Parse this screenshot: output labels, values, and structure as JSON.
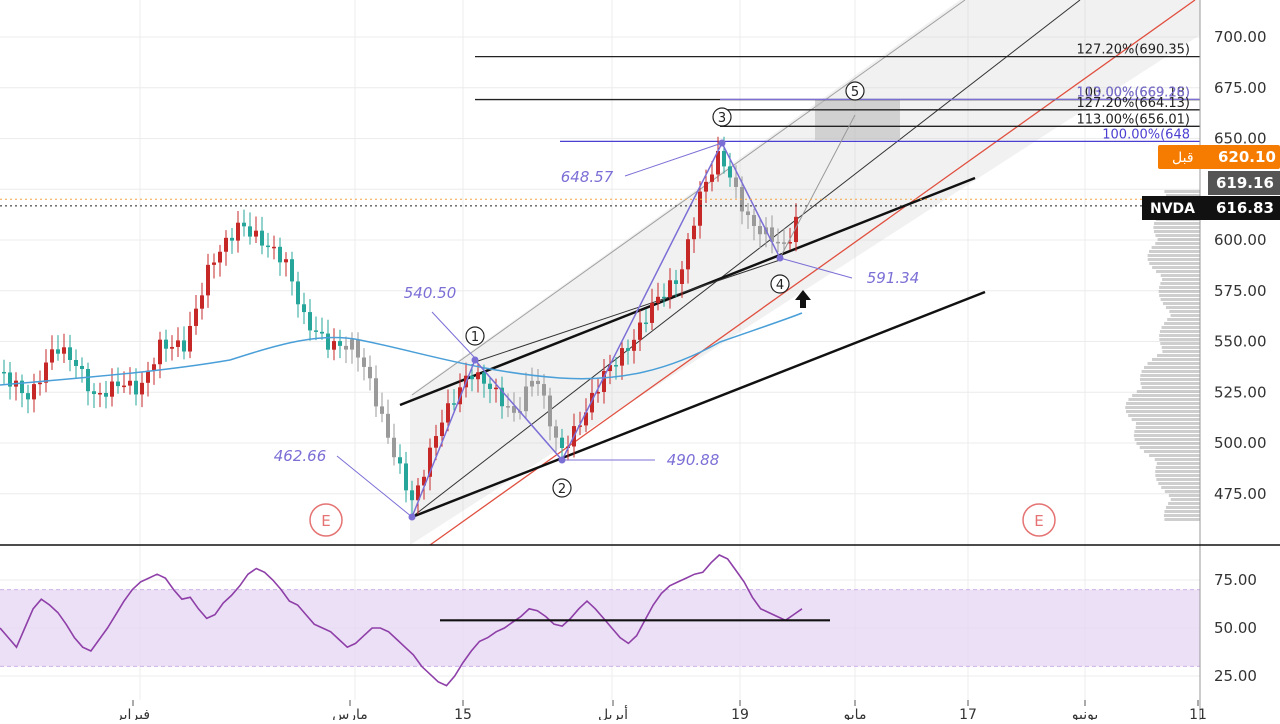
{
  "chart_data": {
    "type": "candlestick",
    "symbol": "NVDA",
    "price_axis": {
      "range": [
        450,
        720
      ],
      "ticks": [
        "700.00",
        "675.00",
        "650.00",
        "625.00",
        "600.00",
        "575.00",
        "550.00",
        "525.00",
        "500.00",
        "475.00"
      ]
    },
    "time_axis": {
      "labels": [
        "فبراير",
        "مارس",
        "15",
        "أبريل",
        "19",
        "مايو",
        "17",
        "يونيو",
        "11"
      ]
    },
    "price_tags": {
      "prev_close": {
        "label": "قبل",
        "value": "620.10",
        "color": "#f57c00"
      },
      "high_marker": {
        "value": "619.16",
        "color": "#555555"
      },
      "last": {
        "label": "NVDA",
        "value": "616.83",
        "color": "#111111"
      }
    },
    "fib_levels": [
      {
        "text": "127.20%(690.35)",
        "color": "#222222",
        "value": 690.35
      },
      {
        "text": "100.00%(669.18)",
        "color": "#222222",
        "value": 669.18
      },
      {
        "text": "113.00%(669.26)",
        "color": "#7b6fd6",
        "value": 669.26
      },
      {
        "text": "127.20%(664.13)",
        "color": "#222222",
        "value": 664.13
      },
      {
        "text": "113.00%(656.01)",
        "color": "#222222",
        "value": 656.01
      },
      {
        "text": "100.00%(648",
        "color": "#4b3fd1",
        "value": 648.57
      }
    ],
    "wave_points": [
      {
        "label": "540.50",
        "wave": "1",
        "price": 540.5
      },
      {
        "label": "490.88",
        "wave": "2",
        "price": 490.88
      },
      {
        "label": "648.57",
        "wave": "3",
        "price": 648.57
      },
      {
        "label": "591.34",
        "wave": "4",
        "price": 591.34
      },
      {
        "label": "462.66",
        "wave": "",
        "price": 462.66
      },
      {
        "label": "",
        "wave": "5",
        "price": 663
      }
    ],
    "events": [
      "E",
      "E"
    ],
    "moving_average": {
      "color": "#4a9fd8"
    },
    "colors": {
      "up": "#26a69a",
      "down": "#c62828",
      "neutral": "#9a9a9a",
      "wave": "#7b6fd6",
      "channel": "#e05040"
    },
    "rsi": {
      "range": [
        15,
        90
      ],
      "ticks": [
        "75.00",
        "50.00",
        "25.00"
      ],
      "band": [
        30,
        70
      ],
      "band_color": "#e6d6f3",
      "line_color": "#8e3fa8",
      "values": [
        50,
        45,
        40,
        50,
        60,
        65,
        62,
        58,
        52,
        45,
        40,
        38,
        44,
        50,
        57,
        64,
        70,
        74,
        76,
        78,
        76,
        70,
        65,
        66,
        60,
        55,
        57,
        63,
        67,
        72,
        78,
        81,
        79,
        75,
        70,
        64,
        62,
        57,
        52,
        50,
        48,
        44,
        40,
        42,
        46,
        50,
        50,
        48,
        44,
        40,
        36,
        30,
        26,
        22,
        20,
        25,
        32,
        38,
        43,
        45,
        48,
        50,
        53,
        56,
        60,
        59,
        56,
        52,
        51,
        55,
        60,
        64,
        60,
        55,
        50,
        45,
        42,
        46,
        54,
        62,
        68,
        72,
        74,
        76,
        78,
        79,
        84,
        88,
        86,
        80,
        74,
        66,
        60,
        58,
        56,
        54,
        57,
        60
      ]
    }
  }
}
